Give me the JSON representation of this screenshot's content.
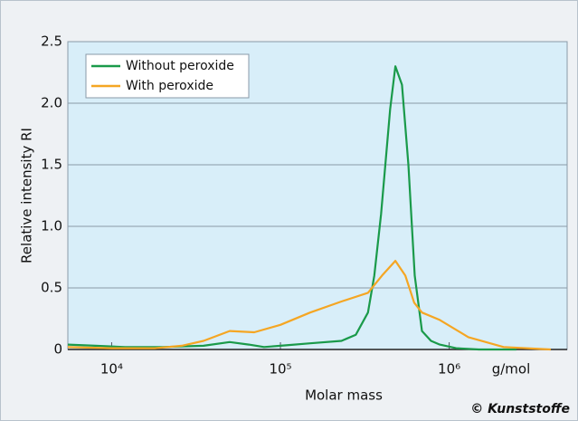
{
  "chart_data": {
    "type": "line",
    "x_label": "Molar mass",
    "x_unit": "g/mol",
    "y_label": "Relative intensity RI",
    "credit": "© Kunststoffe",
    "xscale": "log",
    "xlim": [
      5500,
      5000000
    ],
    "xticks": [
      {
        "value": 10000,
        "label": "10⁴"
      },
      {
        "value": 100000,
        "label": "10⁵"
      },
      {
        "value": 1000000,
        "label": "10⁶"
      }
    ],
    "ylim": [
      0,
      2.5
    ],
    "yticks": [
      0,
      0.5,
      {
        "value": 1,
        "label": "1.0"
      },
      1.5,
      {
        "value": 2,
        "label": "2.0"
      },
      2.5
    ],
    "grid": true,
    "legend": "upper left",
    "series": [
      {
        "name": "Without peroxide",
        "color": "#1a9a4a",
        "x": [
          5500,
          8000,
          12000,
          20000,
          35000,
          50000,
          65000,
          80000,
          100000,
          150000,
          230000,
          280000,
          330000,
          360000,
          395000,
          447000,
          480000,
          525000,
          573000,
          625000,
          690000,
          780000,
          880000,
          1100000,
          1500000,
          2500000
        ],
        "values": [
          0.04,
          0.03,
          0.02,
          0.02,
          0.03,
          0.06,
          0.04,
          0.02,
          0.03,
          0.05,
          0.07,
          0.12,
          0.3,
          0.6,
          1.1,
          1.95,
          2.3,
          2.15,
          1.5,
          0.6,
          0.15,
          0.07,
          0.04,
          0.01,
          0.0,
          0.0
        ]
      },
      {
        "name": "With peroxide",
        "color": "#f5a623",
        "x": [
          5500,
          10000,
          18000,
          26000,
          35000,
          50000,
          70000,
          100000,
          150000,
          230000,
          330000,
          400000,
          480000,
          550000,
          620000,
          690000,
          880000,
          1300000,
          2100000,
          4000000
        ],
        "values": [
          0.02,
          0.01,
          0.01,
          0.03,
          0.07,
          0.15,
          0.14,
          0.2,
          0.3,
          0.39,
          0.46,
          0.6,
          0.72,
          0.6,
          0.38,
          0.3,
          0.24,
          0.1,
          0.02,
          0.0
        ]
      }
    ]
  }
}
